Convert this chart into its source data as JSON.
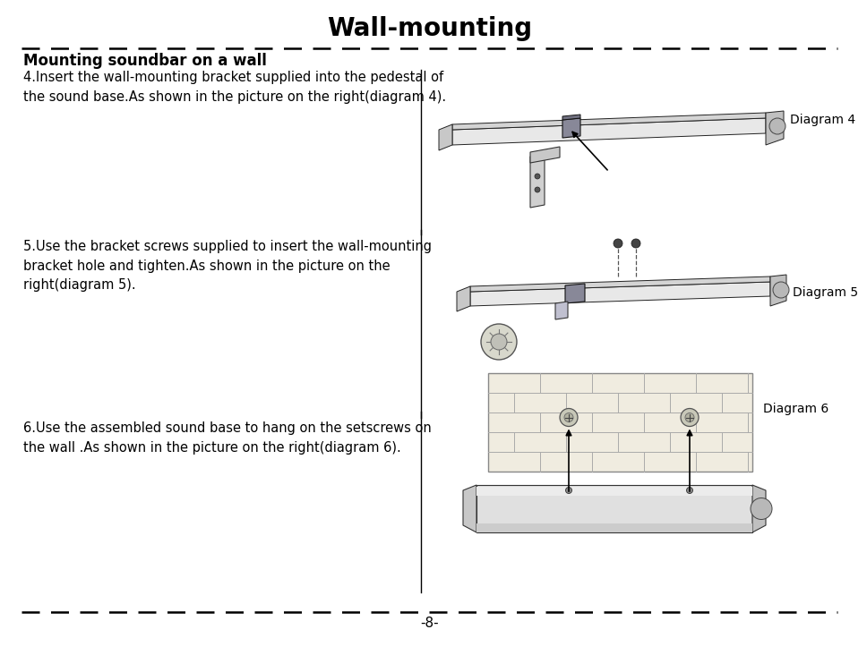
{
  "title": "Wall-mounting",
  "title_fontsize": 20,
  "title_fontweight": "bold",
  "subtitle": "Mounting soundbar on a wall",
  "subtitle_fontsize": 12,
  "subtitle_fontweight": "bold",
  "bg_color": "#ffffff",
  "text_color": "#000000",
  "step4_text_line1": "4.Insert the wall-mounting bracket supplied into the pedestal of",
  "step4_text_line2": "the sound base.As shown in the picture on the right(diagram 4).",
  "step5_text_line1": "5.Use the bracket screws supplied to insert the wall-mounting",
  "step5_text_line2": "bracket hole and tighten.As shown in the picture on the",
  "step5_text_line3": "right(diagram 5).",
  "step6_text_line1": "6.Use the assembled sound base to hang on the setscrews on",
  "step6_text_line2": "the wall .As shown in the picture on the right(diagram 6).",
  "diagram4_label": "Diagram 4",
  "diagram5_label": "Diagram 5",
  "diagram6_label": "Diagram 6",
  "page_number": "-8-",
  "text_fontsize": 10.5,
  "diagram_label_fontsize": 10,
  "dash_pattern": [
    8,
    5
  ],
  "dash_lw": 1.8,
  "sep_line_color": "#000000",
  "sep_line_lw": 1.0
}
